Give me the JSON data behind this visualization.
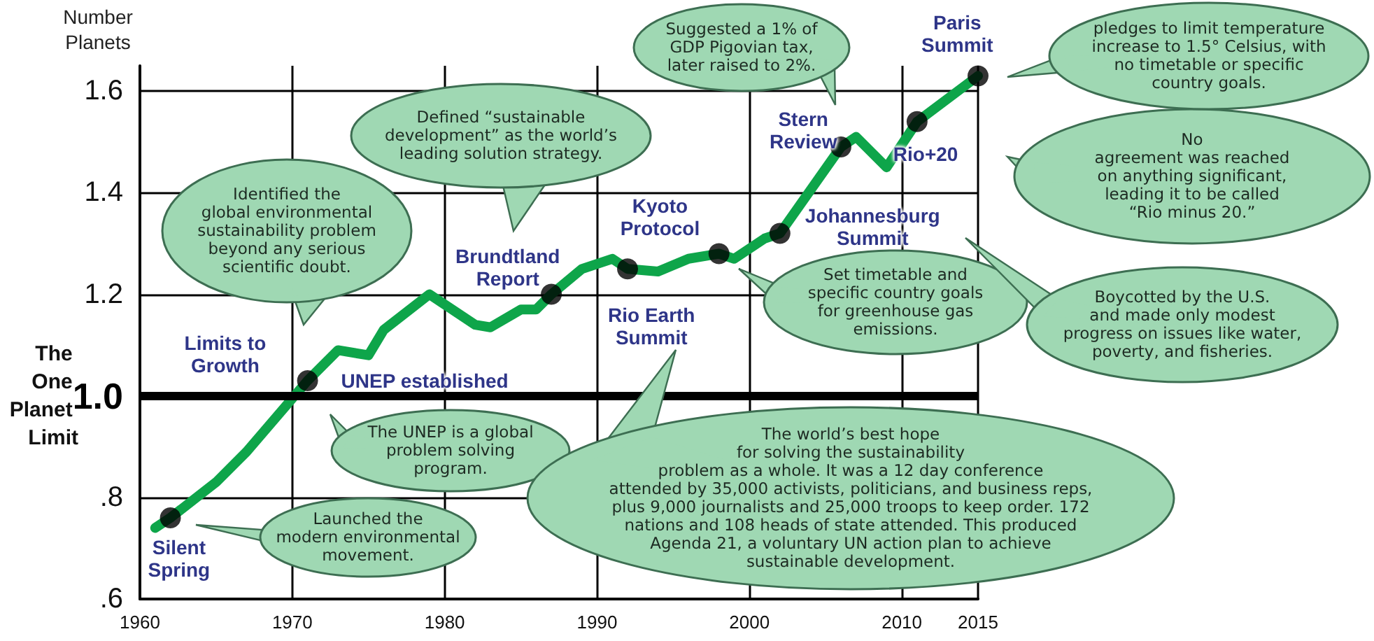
{
  "chart_data": {
    "type": "line",
    "ylabel": "Number Planets",
    "xlim": [
      1960,
      2015
    ],
    "xticks": [
      1960,
      1970,
      1980,
      1990,
      2000,
      2010,
      2015
    ],
    "ylim": [
      0.6,
      1.65
    ],
    "yticks": [
      {
        "value": 0.6,
        "label": ".6"
      },
      {
        "value": 0.8,
        "label": ".8"
      },
      {
        "value": 1.0,
        "label": "1.0"
      },
      {
        "value": 1.2,
        "label": "1.2"
      },
      {
        "value": 1.4,
        "label": "1.4"
      },
      {
        "value": 1.6,
        "label": "1.6"
      }
    ],
    "grid": true,
    "line_style": "solid",
    "ref_lines": [
      {
        "axis": "y",
        "value": 1.0,
        "label": "The One Planet Limit",
        "color": "#000000"
      }
    ],
    "series": [
      {
        "type": "line",
        "color": "#0ea54a",
        "marker": "none",
        "x": [
          1961,
          1962,
          1965,
          1967,
          1969,
          1971,
          1973,
          1975,
          1976,
          1979,
          1980,
          1982,
          1983,
          1985,
          1986,
          1987,
          1989,
          1991,
          1992,
          1994,
          1996,
          1998,
          1999,
          2001,
          2002,
          2006,
          2007,
          2009,
          2011,
          2015
        ],
        "values": [
          0.74,
          0.76,
          0.83,
          0.89,
          0.96,
          1.03,
          1.09,
          1.08,
          1.13,
          1.2,
          1.18,
          1.14,
          1.135,
          1.17,
          1.17,
          1.2,
          1.25,
          1.27,
          1.25,
          1.245,
          1.27,
          1.28,
          1.27,
          1.31,
          1.32,
          1.49,
          1.51,
          1.45,
          1.54,
          1.63
        ]
      },
      {
        "type": "scatter",
        "color": "#000000",
        "marker": "circle",
        "x": [
          1962,
          1971,
          1987,
          1992,
          1998,
          2002,
          2006,
          2011,
          2015
        ],
        "values": [
          0.76,
          1.03,
          1.2,
          1.25,
          1.28,
          1.32,
          1.49,
          1.54,
          1.63
        ]
      }
    ],
    "annotations": [
      {
        "text": "Silent\nSpring",
        "x": 1962,
        "y": 0.76
      },
      {
        "text": "Limits to\nGrowth",
        "x": 1971,
        "y": 1.03
      },
      {
        "text": "UNEP established",
        "x": 1971,
        "y": 1.03
      },
      {
        "text": "Brundtland\nReport",
        "x": 1987,
        "y": 1.2
      },
      {
        "text": "Rio Earth\nSummit",
        "x": 1992,
        "y": 1.25
      },
      {
        "text": "Kyoto\nProtocol",
        "x": 1998,
        "y": 1.28
      },
      {
        "text": "Johannesburg\nSummit",
        "x": 2002,
        "y": 1.32
      },
      {
        "text": "Stern\nReview",
        "x": 2006,
        "y": 1.49
      },
      {
        "text": "Rio+20",
        "x": 2011,
        "y": 1.54
      },
      {
        "text": "Paris\nSummit",
        "x": 2015,
        "y": 1.63
      },
      "Launched the\nmodern environmental\nmovement.",
      "The UNEP is a global\nproblem solving\nprogram.",
      "Identified the\nglobal environmental\nsustainability problem\nbeyond any serious\nscientific doubt.",
      "Defined “sustainable\ndevelopment” as the world’s\nleading solution strategy.",
      "The world’s best hope\nfor solving the sustainability\nproblem as a whole. It was a 12 day conference\nattended by 35,000 activists, politicians, and business reps,\nplus 9,000 journalists and 25,000 troops to keep order. 172\nnations and 108 heads of state attended. This produced\nAgenda 21, a voluntary UN action plan to achieve\nsustainable development.",
      "Set timetable and\nspecific country goals\nfor greenhouse gas\nemissions.",
      "Boycotted by the U.S.\nand made only modest\nprogress on issues like water,\npoverty, and fisheries.",
      "Suggested a 1% of\nGDP Pigovian tax,\nlater raised to 2%.",
      "No\nagreement was reached\non anything significant,\nleading it to be called\n“Rio minus 20.”",
      "pledges to limit temperature\nincrease to 1.5° Celsius, with\nno timetable or specific\ncountry goals."
    ]
  }
}
